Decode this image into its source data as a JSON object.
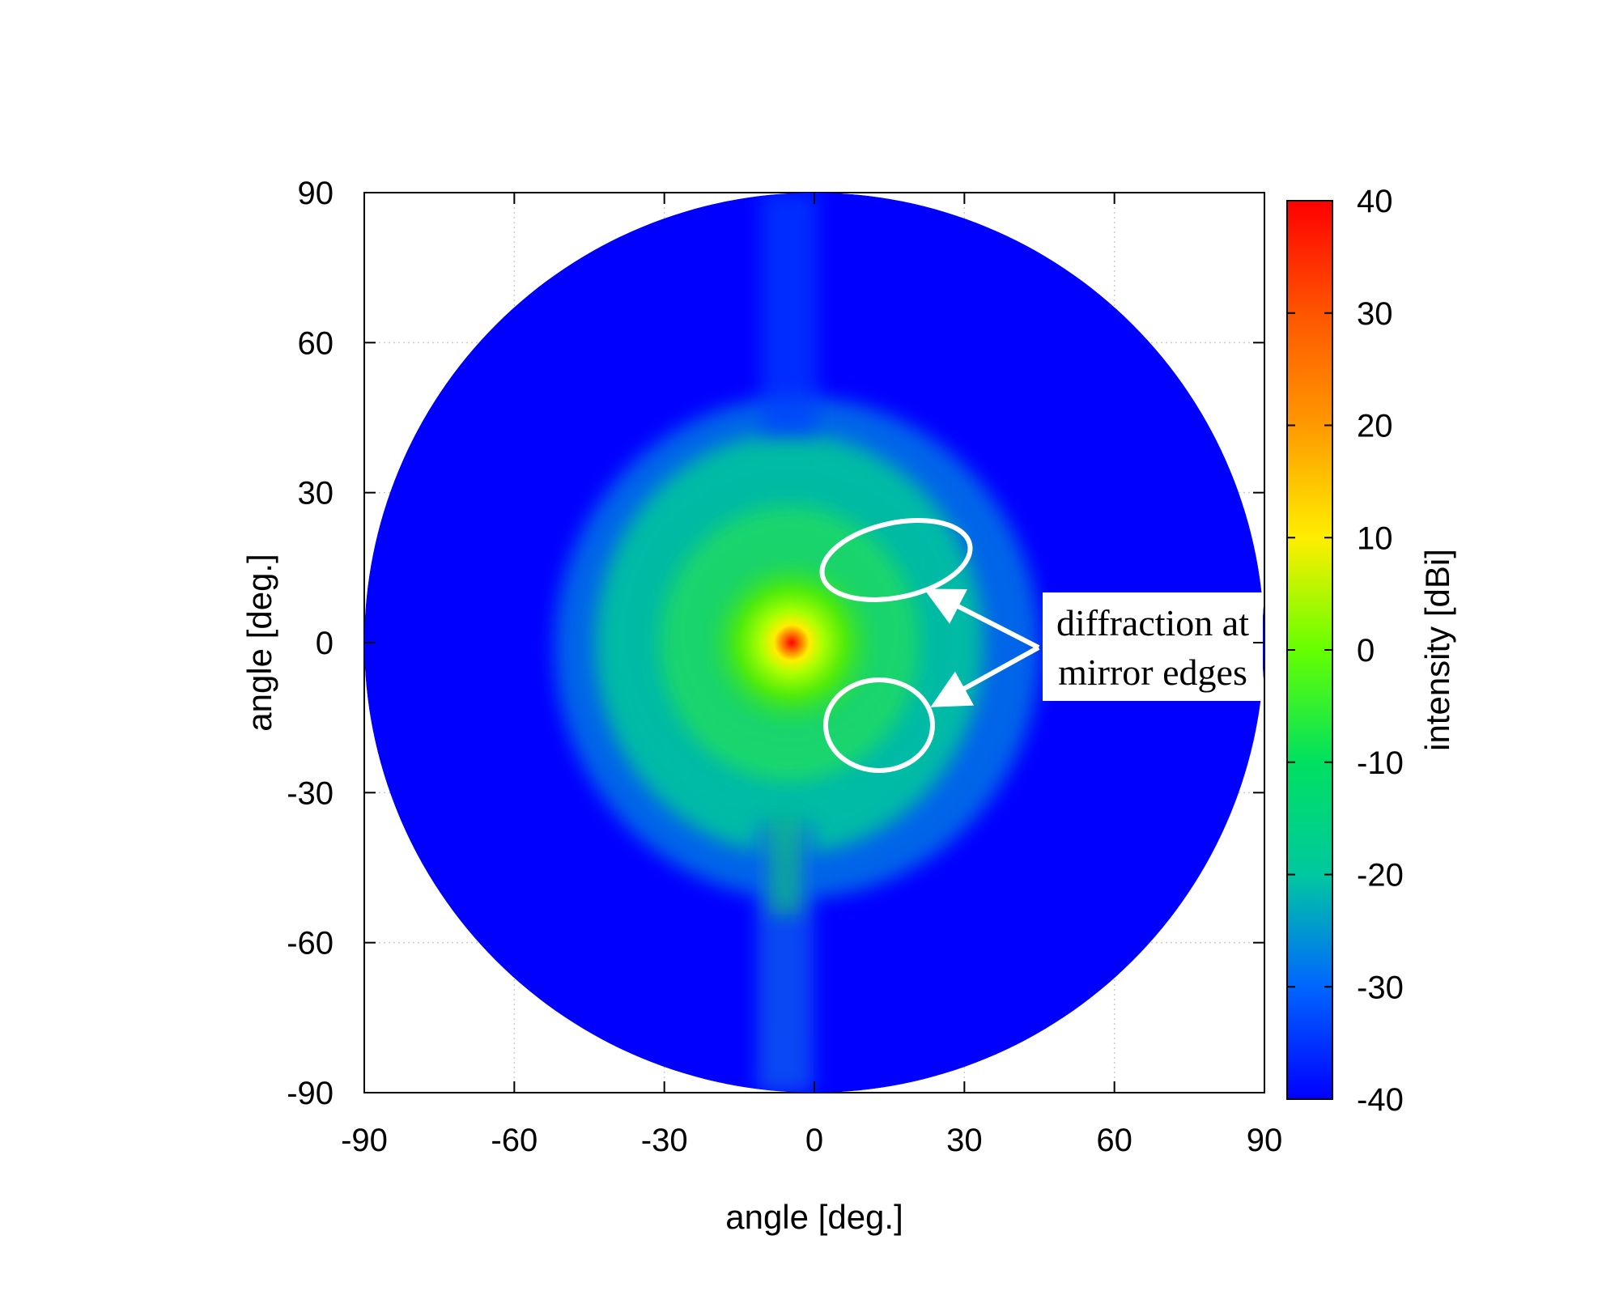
{
  "chart_data": {
    "type": "heatmap",
    "xlabel": "angle [deg.]",
    "ylabel": "angle [deg.]",
    "xlim": [
      -90,
      90
    ],
    "ylim": [
      -90,
      90
    ],
    "xticks": [
      "-90",
      "-60",
      "-30",
      "0",
      "30",
      "60",
      "90"
    ],
    "yticks": [
      "90",
      "60",
      "30",
      "0",
      "-30",
      "-60",
      "-90"
    ],
    "grid": true,
    "domain_shape": "circle",
    "domain_radius_deg": 90,
    "peak": {
      "x": -5,
      "y": 2,
      "value": 40
    },
    "background_value": -40,
    "colorbar": {
      "label": "intensity [dBi]",
      "min": -40,
      "max": 40,
      "ticks": [
        "40",
        "30",
        "20",
        "10",
        "0",
        "-10",
        "-20",
        "-30",
        "-40"
      ],
      "colors": [
        "#0000ff",
        "#0066ff",
        "#00c8a0",
        "#00e060",
        "#66ff00",
        "#ffee00",
        "#ff9900",
        "#ff5500",
        "#ff0000"
      ]
    },
    "annotations": [
      {
        "text_lines": [
          "diffraction at",
          "mirror edges"
        ],
        "highlight_regions": [
          {
            "x": 16,
            "y": 18
          },
          {
            "x": 13,
            "y": -14
          }
        ]
      }
    ]
  }
}
